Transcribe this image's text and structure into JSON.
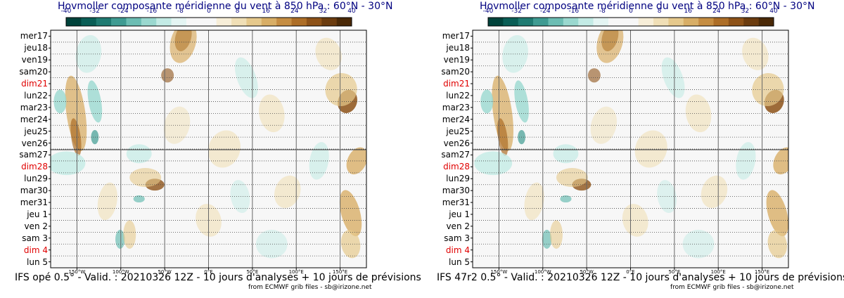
{
  "chart_data": [
    {
      "type": "heatmap",
      "title": "Hovmoller composante méridienne du vent à 850 hPa : 60°N - 30°N",
      "colorbar": {
        "ticks": [
          "-40",
          "-32",
          "-24",
          "-16",
          "-8",
          "0",
          "8",
          "16",
          "24",
          "32",
          "40"
        ],
        "range": [
          -40,
          40
        ],
        "colors": [
          "#01433b",
          "#0a5e56",
          "#1f7b72",
          "#3f9b92",
          "#6cbdb3",
          "#9ad8cf",
          "#c3ebe5",
          "#e4f5f3",
          "#f7f7f7",
          "#f7f7f7",
          "#f7eed8",
          "#f0dfb6",
          "#e6c98c",
          "#d8ae66",
          "#c58d42",
          "#ad6e27",
          "#8d5218",
          "#6b3c0f",
          "#4a2907"
        ]
      },
      "y_labels": [
        {
          "label": "mer17",
          "sunday": false
        },
        {
          "label": "jeu18",
          "sunday": false
        },
        {
          "label": "ven19",
          "sunday": false
        },
        {
          "label": "sam20",
          "sunday": false
        },
        {
          "label": "dim21",
          "sunday": true
        },
        {
          "label": "lun22",
          "sunday": false
        },
        {
          "label": "mar23",
          "sunday": false
        },
        {
          "label": "mer24",
          "sunday": false
        },
        {
          "label": "jeu25",
          "sunday": false
        },
        {
          "label": "ven26",
          "sunday": false
        },
        {
          "label": "sam27",
          "sunday": false
        },
        {
          "label": "dim28",
          "sunday": true
        },
        {
          "label": "lun29",
          "sunday": false
        },
        {
          "label": "mar30",
          "sunday": false
        },
        {
          "label": "mer31",
          "sunday": false
        },
        {
          "label": "jeu 1",
          "sunday": false
        },
        {
          "label": "ven 2",
          "sunday": false
        },
        {
          "label": "sam 3",
          "sunday": false
        },
        {
          "label": "dim 4",
          "sunday": true
        },
        {
          "label": "lun 5",
          "sunday": false
        }
      ],
      "x_labels": [
        {
          "label": "150°W",
          "lon": -150
        },
        {
          "label": "100°W",
          "lon": -100
        },
        {
          "label": "50°W",
          "lon": -50
        },
        {
          "label": "0°E",
          "lon": 0
        },
        {
          "label": "50°E",
          "lon": 50
        },
        {
          "label": "100°E",
          "lon": 100
        },
        {
          "label": "150°E",
          "lon": 150
        }
      ],
      "xlim": [
        -180,
        180
      ],
      "analysis_forecast_split": "sam27",
      "footer": "IFS opé 0.5° - Valid. : 20210326 12Z - 10 jours d'analyses + 10 jours de prévisions",
      "credit": "from ECMWF grib files - sb@irizone.net"
    },
    {
      "type": "heatmap",
      "title": "Hovmoller composante méridienne du vent à 850 hPa : 60°N - 30°N",
      "colorbar": {
        "ticks": [
          "-40",
          "-32",
          "-24",
          "-16",
          "-8",
          "0",
          "8",
          "16",
          "24",
          "32",
          "40"
        ],
        "range": [
          -40,
          40
        ],
        "colors": [
          "#01433b",
          "#0a5e56",
          "#1f7b72",
          "#3f9b92",
          "#6cbdb3",
          "#9ad8cf",
          "#c3ebe5",
          "#e4f5f3",
          "#f7f7f7",
          "#f7f7f7",
          "#f7eed8",
          "#f0dfb6",
          "#e6c98c",
          "#d8ae66",
          "#c58d42",
          "#ad6e27",
          "#8d5218",
          "#6b3c0f",
          "#4a2907"
        ]
      },
      "y_labels": [
        {
          "label": "mer17",
          "sunday": false
        },
        {
          "label": "jeu18",
          "sunday": false
        },
        {
          "label": "ven19",
          "sunday": false
        },
        {
          "label": "sam20",
          "sunday": false
        },
        {
          "label": "dim21",
          "sunday": true
        },
        {
          "label": "lun22",
          "sunday": false
        },
        {
          "label": "mar23",
          "sunday": false
        },
        {
          "label": "mer24",
          "sunday": false
        },
        {
          "label": "jeu25",
          "sunday": false
        },
        {
          "label": "ven26",
          "sunday": false
        },
        {
          "label": "sam27",
          "sunday": false
        },
        {
          "label": "dim28",
          "sunday": true
        },
        {
          "label": "lun29",
          "sunday": false
        },
        {
          "label": "mar30",
          "sunday": false
        },
        {
          "label": "mer31",
          "sunday": false
        },
        {
          "label": "jeu 1",
          "sunday": false
        },
        {
          "label": "ven 2",
          "sunday": false
        },
        {
          "label": "sam 3",
          "sunday": false
        },
        {
          "label": "dim 4",
          "sunday": true
        },
        {
          "label": "lun 5",
          "sunday": false
        }
      ],
      "x_labels": [
        {
          "label": "150°W",
          "lon": -150
        },
        {
          "label": "100°W",
          "lon": -100
        },
        {
          "label": "50°W",
          "lon": -50
        },
        {
          "label": "0°E",
          "lon": 0
        },
        {
          "label": "50°E",
          "lon": 50
        },
        {
          "label": "100°E",
          "lon": 100
        },
        {
          "label": "150°E",
          "lon": 150
        }
      ],
      "xlim": [
        -180,
        180
      ],
      "analysis_forecast_split": "sam27",
      "footer": "IFS 47r2 0.5° - Valid. : 20210326 12Z - 10 jours d'analyses + 10 jours de prévisions",
      "credit": "from ECMWF grib files - sb@irizone.net"
    }
  ]
}
